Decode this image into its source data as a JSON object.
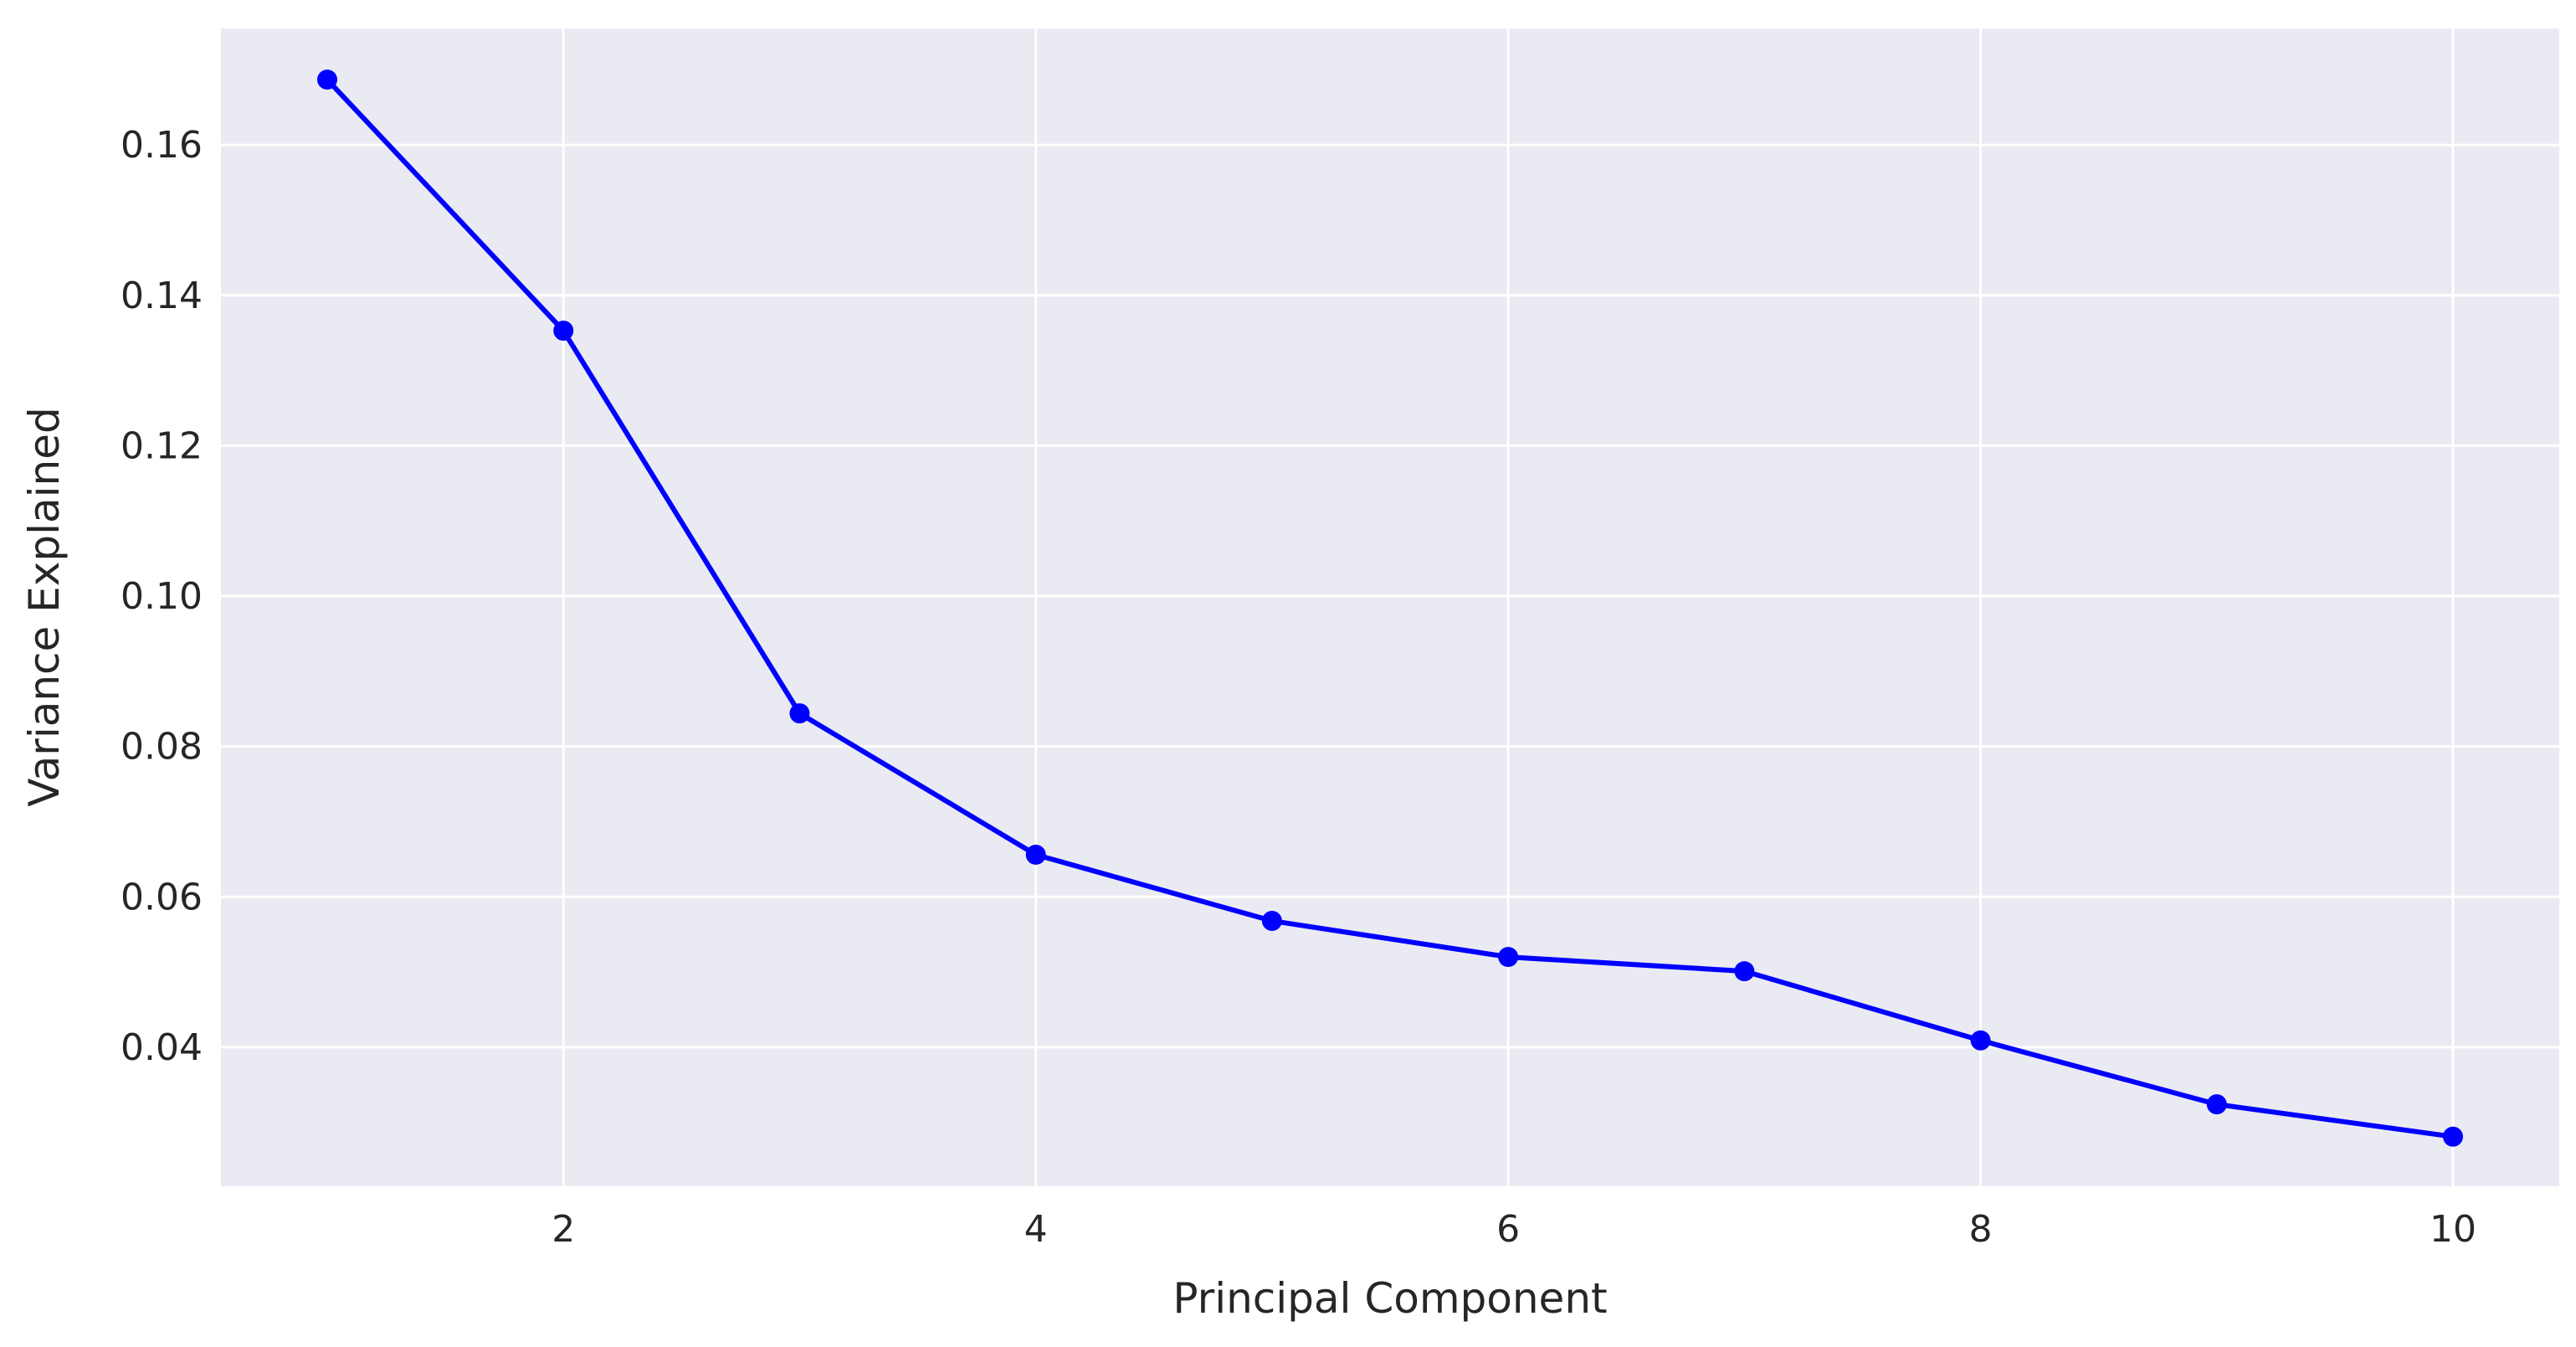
{
  "chart_data": {
    "type": "line",
    "title": "",
    "xlabel": "Principal Component",
    "ylabel": "Variance Explained",
    "xlim": [
      0.55,
      10.45
    ],
    "ylim": [
      0.0215,
      0.1755
    ],
    "xticks": [
      2,
      4,
      6,
      8,
      10
    ],
    "yticks": [
      0.04,
      0.06,
      0.08,
      0.1,
      0.12,
      0.14,
      0.16
    ],
    "xtick_labels": [
      "2",
      "4",
      "6",
      "8",
      "10"
    ],
    "ytick_labels": [
      "0.04",
      "0.06",
      "0.08",
      "0.10",
      "0.12",
      "0.14",
      "0.16"
    ],
    "grid": true,
    "background_color": "#eaeaf2",
    "grid_color": "#ffffff",
    "series": [
      {
        "color": "#0000ff",
        "marker": "circle",
        "x": [
          1,
          2,
          3,
          4,
          5,
          6,
          7,
          8,
          9,
          10
        ],
        "y": [
          0.1687,
          0.1353,
          0.0844,
          0.0656,
          0.0568,
          0.052,
          0.0501,
          0.0409,
          0.0324,
          0.0281
        ]
      }
    ]
  }
}
